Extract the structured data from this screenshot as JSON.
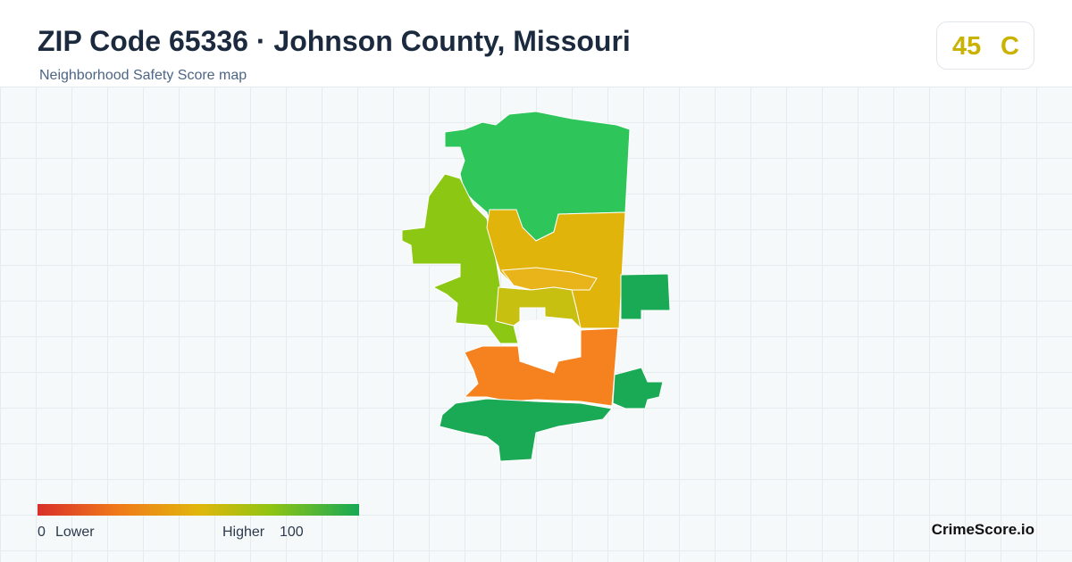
{
  "header": {
    "title": "ZIP Code 65336 · Johnson County, Missouri",
    "subtitle": "Neighborhood Safety Score map"
  },
  "score": {
    "value": 45,
    "grade": "C"
  },
  "legend": {
    "min": 0,
    "min_label": "Lower",
    "max_label": "Higher",
    "max": 100
  },
  "brand": "CrimeScore.io"
}
